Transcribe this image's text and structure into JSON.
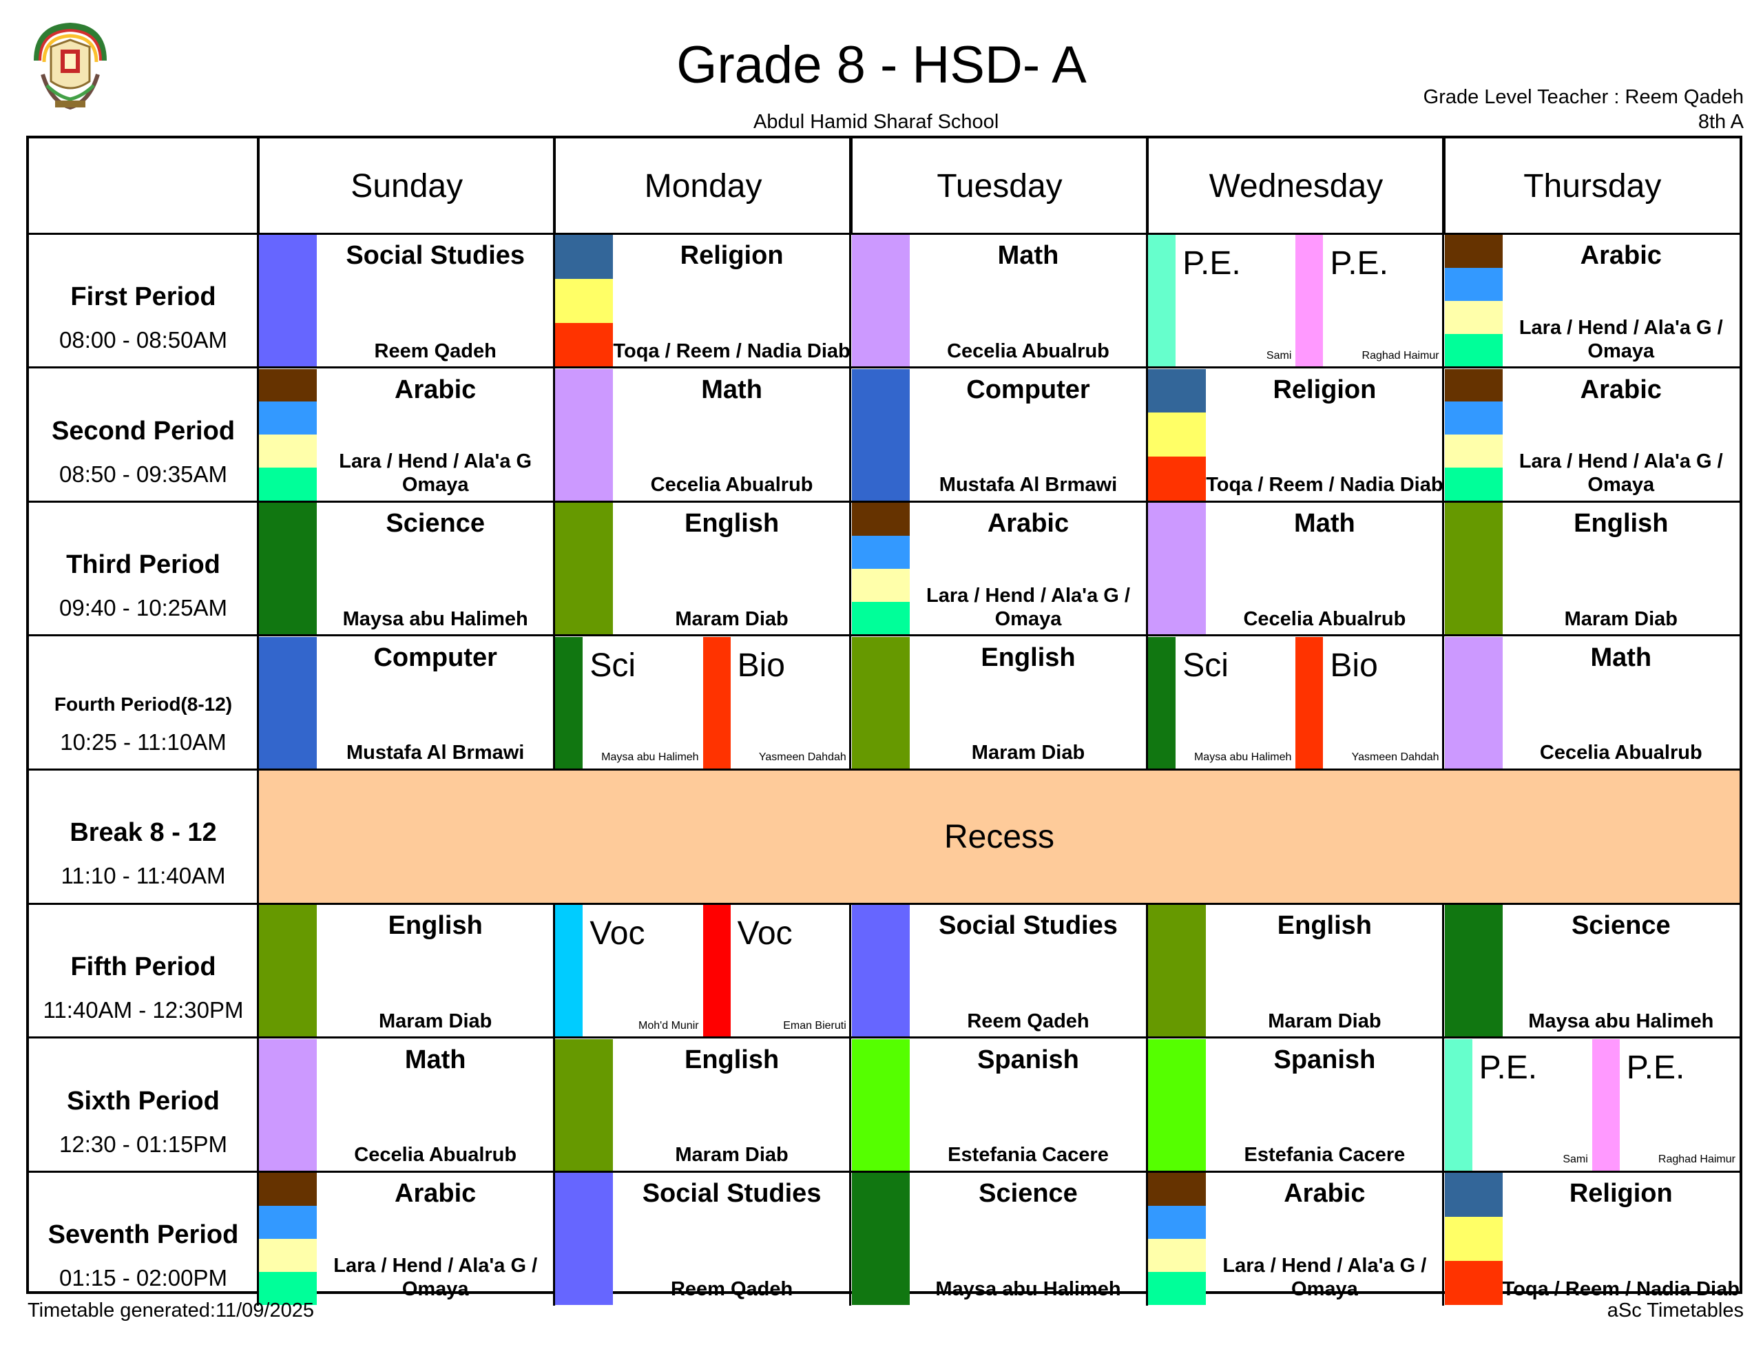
{
  "header": {
    "title": "Grade 8 - HSD- A",
    "school": "Abdul Hamid Sharaf School",
    "teacher": "Grade Level Teacher : Reem Qadeh",
    "class": "8th A"
  },
  "days": [
    "Sunday",
    "Monday",
    "Tuesday",
    "Wednesday",
    "Thursday"
  ],
  "periods": [
    {
      "name": "First Period",
      "time": "08:00 - 08:50AM",
      "small": false
    },
    {
      "name": "Second Period",
      "time": "08:50 - 09:35AM",
      "small": false
    },
    {
      "name": "Third Period",
      "time": "09:40 - 10:25AM",
      "small": false
    },
    {
      "name": "Fourth Period(8-12)",
      "time": "10:25 - 11:10AM",
      "small": true
    },
    {
      "name": "Break 8 - 12",
      "time": "11:10 - 11:40AM",
      "small": false
    },
    {
      "name": "Fifth Period",
      "time": "11:40AM - 12:30PM",
      "small": false
    },
    {
      "name": "Sixth Period",
      "time": "12:30 - 01:15PM",
      "small": false
    },
    {
      "name": "Seventh Period",
      "time": "01:15 - 02:00PM",
      "small": false
    }
  ],
  "recess": "Recess",
  "subject_colors": {
    "social_studies": "#6666FF",
    "religion": [
      "#336699",
      "#FFFF66",
      "#FF3300"
    ],
    "math": "#CC99FF",
    "arabic": [
      "#663300",
      "#3399FF",
      "#FFFFAA",
      "#00FF99"
    ],
    "computer": "#3366CC",
    "english": "#669900",
    "science": "#117711",
    "spanish": "#55FF00",
    "pe": [
      "#66FFCC",
      "#FF99FF"
    ],
    "sci_bio": [
      "#117711",
      "#FF3300"
    ],
    "voc": [
      "#00CCFF",
      "#FF0000"
    ]
  },
  "grid": [
    [
      {
        "type": "single",
        "subject": "Social Studies",
        "teacher": "Reem Qadeh",
        "colors": [
          "#6666FF"
        ]
      },
      {
        "type": "single",
        "subject": "Religion",
        "teacher": "Toqa / Reem / Nadia Diab",
        "colors": [
          "#336699",
          "#FFFF66",
          "#FF3300"
        ]
      },
      {
        "type": "single",
        "subject": "Math",
        "teacher": "Cecelia Abualrub",
        "colors": [
          "#CC99FF"
        ]
      },
      {
        "type": "split",
        "halves": [
          {
            "subject": "P.E.",
            "teacher": "Sami",
            "color": "#66FFCC"
          },
          {
            "subject": "P.E.",
            "teacher": "Raghad Haimur",
            "color": "#FF99FF"
          }
        ]
      },
      {
        "type": "single",
        "subject": "Arabic",
        "teacher": "Lara / Hend / Ala'a G / Omaya",
        "colors": [
          "#663300",
          "#3399FF",
          "#FFFFAA",
          "#00FF99"
        ]
      }
    ],
    [
      {
        "type": "single",
        "subject": "Arabic",
        "teacher": "Lara / Hend / Ala'a G Omaya",
        "colors": [
          "#663300",
          "#3399FF",
          "#FFFFAA",
          "#00FF99"
        ]
      },
      {
        "type": "single",
        "subject": "Math",
        "teacher": "Cecelia Abualrub",
        "colors": [
          "#CC99FF"
        ]
      },
      {
        "type": "single",
        "subject": "Computer",
        "teacher": "Mustafa Al Brmawi",
        "colors": [
          "#3366CC"
        ]
      },
      {
        "type": "single",
        "subject": "Religion",
        "teacher": "Toqa / Reem / Nadia Diab",
        "colors": [
          "#336699",
          "#FFFF66",
          "#FF3300"
        ]
      },
      {
        "type": "single",
        "subject": "Arabic",
        "teacher": "Lara / Hend / Ala'a G / Omaya",
        "colors": [
          "#663300",
          "#3399FF",
          "#FFFFAA",
          "#00FF99"
        ]
      }
    ],
    [
      {
        "type": "single",
        "subject": "Science",
        "teacher": "Maysa abu Halimeh",
        "colors": [
          "#117711"
        ]
      },
      {
        "type": "single",
        "subject": "English",
        "teacher": "Maram Diab",
        "colors": [
          "#669900"
        ]
      },
      {
        "type": "single",
        "subject": "Arabic",
        "teacher": "Lara / Hend / Ala'a G / Omaya",
        "colors": [
          "#663300",
          "#3399FF",
          "#FFFFAA",
          "#00FF99"
        ]
      },
      {
        "type": "single",
        "subject": "Math",
        "teacher": "Cecelia Abualrub",
        "colors": [
          "#CC99FF"
        ]
      },
      {
        "type": "single",
        "subject": "English",
        "teacher": "Maram Diab",
        "colors": [
          "#669900"
        ]
      }
    ],
    [
      {
        "type": "single",
        "subject": "Computer",
        "teacher": "Mustafa Al Brmawi",
        "colors": [
          "#3366CC"
        ]
      },
      {
        "type": "split",
        "halves": [
          {
            "subject": "Sci",
            "teacher": "Maysa abu Halimeh",
            "color": "#117711"
          },
          {
            "subject": "Bio",
            "teacher": "Yasmeen Dahdah",
            "color": "#FF3300"
          }
        ]
      },
      {
        "type": "single",
        "subject": "English",
        "teacher": "Maram Diab",
        "colors": [
          "#669900"
        ]
      },
      {
        "type": "split",
        "halves": [
          {
            "subject": "Sci",
            "teacher": "Maysa abu Halimeh",
            "color": "#117711"
          },
          {
            "subject": "Bio",
            "teacher": "Yasmeen Dahdah",
            "color": "#FF3300"
          }
        ]
      },
      {
        "type": "single",
        "subject": "Math",
        "teacher": "Cecelia Abualrub",
        "colors": [
          "#CC99FF"
        ]
      }
    ],
    null,
    [
      {
        "type": "single",
        "subject": "English",
        "teacher": "Maram Diab",
        "colors": [
          "#669900"
        ]
      },
      {
        "type": "split",
        "halves": [
          {
            "subject": "Voc",
            "teacher": "Moh'd Munir",
            "color": "#00CCFF"
          },
          {
            "subject": "Voc",
            "teacher": "Eman Bieruti",
            "color": "#FF0000"
          }
        ]
      },
      {
        "type": "single",
        "subject": "Social Studies",
        "teacher": "Reem Qadeh",
        "colors": [
          "#6666FF"
        ]
      },
      {
        "type": "single",
        "subject": "English",
        "teacher": "Maram Diab",
        "colors": [
          "#669900"
        ]
      },
      {
        "type": "single",
        "subject": "Science",
        "teacher": "Maysa abu Halimeh",
        "colors": [
          "#117711"
        ]
      }
    ],
    [
      {
        "type": "single",
        "subject": "Math",
        "teacher": "Cecelia Abualrub",
        "colors": [
          "#CC99FF"
        ]
      },
      {
        "type": "single",
        "subject": "English",
        "teacher": "Maram Diab",
        "colors": [
          "#669900"
        ]
      },
      {
        "type": "single",
        "subject": "Spanish",
        "teacher": "Estefania Cacere",
        "colors": [
          "#55FF00"
        ]
      },
      {
        "type": "single",
        "subject": "Spanish",
        "teacher": "Estefania Cacere",
        "colors": [
          "#55FF00"
        ]
      },
      {
        "type": "split",
        "halves": [
          {
            "subject": "P.E.",
            "teacher": "Sami",
            "color": "#66FFCC"
          },
          {
            "subject": "P.E.",
            "teacher": "Raghad Haimur",
            "color": "#FF99FF"
          }
        ]
      }
    ],
    [
      {
        "type": "single",
        "subject": "Arabic",
        "teacher": "Lara / Hend / Ala'a G / Omaya",
        "colors": [
          "#663300",
          "#3399FF",
          "#FFFFAA",
          "#00FF99"
        ]
      },
      {
        "type": "single",
        "subject": "Social Studies",
        "teacher": "Reem Qadeh",
        "colors": [
          "#6666FF"
        ]
      },
      {
        "type": "single",
        "subject": "Science",
        "teacher": "Maysa abu Halimeh",
        "colors": [
          "#117711"
        ]
      },
      {
        "type": "single",
        "subject": "Arabic",
        "teacher": "Lara / Hend / Ala'a G / Omaya",
        "colors": [
          "#663300",
          "#3399FF",
          "#FFFFAA",
          "#00FF99"
        ]
      },
      {
        "type": "single",
        "subject": "Religion",
        "teacher": "Toqa / Reem / Nadia Diab",
        "colors": [
          "#336699",
          "#FFFF66",
          "#FF3300"
        ]
      }
    ]
  ],
  "footer": {
    "generated": "Timetable generated:11/09/2025",
    "brand": "aSc Timetables"
  }
}
